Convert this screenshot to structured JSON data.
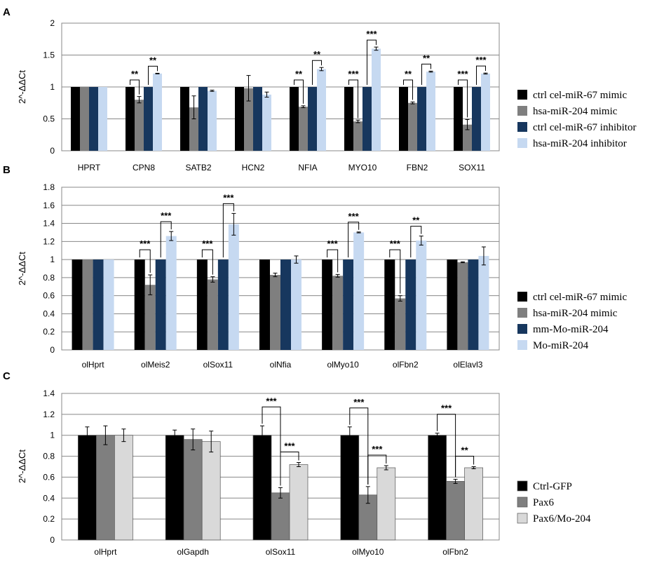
{
  "colors": {
    "black": "#000000",
    "gray": "#7f7f7f",
    "navy": "#17375e",
    "lightblue": "#c6d9f1",
    "lightgray": "#d9d9d9",
    "grid": "#888888"
  },
  "chart_data": [
    {
      "type": "bar",
      "panel_label": "A",
      "ylabel": "2^-ΔΔCt",
      "ylim": [
        0,
        2
      ],
      "yticks": [
        "0",
        "0.5",
        "1",
        "1.5",
        "2"
      ],
      "ytick_values": [
        0,
        0.5,
        1,
        1.5,
        2
      ],
      "grid": true,
      "legend_position": "right",
      "categories": [
        "HPRT",
        "CPN8",
        "SATB2",
        "HCN2",
        "NFIA",
        "MYO10",
        "FBN2",
        "SOX11"
      ],
      "series": [
        {
          "name": "ctrl cel-miR-67 mimic",
          "color": "#000000",
          "values": [
            1,
            1,
            1,
            1,
            1,
            1,
            1,
            1
          ],
          "errors": [
            0,
            0,
            0,
            0,
            0,
            0,
            0,
            0
          ]
        },
        {
          "name": "hsa-miR-204 mimic",
          "color": "#7f7f7f",
          "values": [
            1,
            0.8,
            0.68,
            0.98,
            0.69,
            0.46,
            0.75,
            0.41
          ],
          "errors": [
            0,
            0.05,
            0.18,
            0.2,
            0.015,
            0.02,
            0.015,
            0.08
          ]
        },
        {
          "name": "ctrl cel-miR-67 inhibitor",
          "color": "#17375e",
          "values": [
            1,
            1,
            1,
            1,
            1,
            1,
            1,
            1
          ],
          "errors": [
            0,
            0,
            0,
            0,
            0,
            0,
            0,
            0
          ]
        },
        {
          "name": "hsa-miR-204 inhibitor",
          "color": "#c6d9f1",
          "values": [
            1,
            1.21,
            0.94,
            0.88,
            1.28,
            1.6,
            1.24,
            1.21
          ],
          "errors": [
            0,
            0.005,
            0.01,
            0.04,
            0.025,
            0.025,
            0.008,
            0.008
          ]
        }
      ],
      "significance": [
        {
          "cat": 1,
          "pair": [
            0,
            1
          ],
          "label": "**"
        },
        {
          "cat": 1,
          "pair": [
            2,
            3
          ],
          "label": "**"
        },
        {
          "cat": 4,
          "pair": [
            0,
            1
          ],
          "label": "**"
        },
        {
          "cat": 4,
          "pair": [
            2,
            3
          ],
          "label": "**"
        },
        {
          "cat": 5,
          "pair": [
            0,
            1
          ],
          "label": "***"
        },
        {
          "cat": 5,
          "pair": [
            2,
            3
          ],
          "label": "***"
        },
        {
          "cat": 6,
          "pair": [
            0,
            1
          ],
          "label": "**"
        },
        {
          "cat": 6,
          "pair": [
            2,
            3
          ],
          "label": "**"
        },
        {
          "cat": 7,
          "pair": [
            0,
            1
          ],
          "label": "***"
        },
        {
          "cat": 7,
          "pair": [
            2,
            3
          ],
          "label": "***"
        }
      ]
    },
    {
      "type": "bar",
      "panel_label": "B",
      "ylabel": "2^-ΔΔCt",
      "ylim": [
        0,
        1.8
      ],
      "yticks": [
        "0",
        "0.2",
        "0.4",
        "0.6",
        "0.8",
        "1",
        "1.2",
        "1.4",
        "1.6",
        "1.8"
      ],
      "ytick_values": [
        0,
        0.2,
        0.4,
        0.6,
        0.8,
        1,
        1.2,
        1.4,
        1.6,
        1.8
      ],
      "grid": true,
      "legend_position": "right",
      "categories": [
        "olHprt",
        "olMeis2",
        "olSox11",
        "olNfia",
        "olMyo10",
        "olFbn2",
        "olElavl3"
      ],
      "series": [
        {
          "name": "ctrl cel-miR-67 mimic",
          "color": "#000000",
          "values": [
            1,
            1,
            1,
            1,
            1,
            1,
            1
          ],
          "errors": [
            0,
            0,
            0,
            0,
            0,
            0,
            0
          ]
        },
        {
          "name": "hsa-miR-204 mimic",
          "color": "#7f7f7f",
          "values": [
            1,
            0.72,
            0.78,
            0.83,
            0.82,
            0.57,
            0.97
          ],
          "errors": [
            0,
            0.11,
            0.03,
            0.02,
            0.015,
            0.03,
            0.005
          ]
        },
        {
          "name": "mm-Mo-miR-204",
          "color": "#17375e",
          "values": [
            1,
            1,
            1,
            1,
            1,
            1,
            1
          ],
          "errors": [
            0,
            0,
            0,
            0,
            0,
            0,
            0
          ]
        },
        {
          "name": "Mo-miR-204",
          "color": "#c6d9f1",
          "values": [
            1,
            1.26,
            1.39,
            1.0,
            1.3,
            1.21,
            1.04
          ],
          "errors": [
            0,
            0.05,
            0.12,
            0.04,
            0.005,
            0.05,
            0.1
          ]
        }
      ],
      "significance": [
        {
          "cat": 1,
          "pair": [
            0,
            1
          ],
          "label": "***"
        },
        {
          "cat": 1,
          "pair": [
            2,
            3
          ],
          "label": "***"
        },
        {
          "cat": 2,
          "pair": [
            0,
            1
          ],
          "label": "***"
        },
        {
          "cat": 2,
          "pair": [
            2,
            3
          ],
          "label": "***"
        },
        {
          "cat": 4,
          "pair": [
            0,
            1
          ],
          "label": "***"
        },
        {
          "cat": 4,
          "pair": [
            2,
            3
          ],
          "label": "***"
        },
        {
          "cat": 5,
          "pair": [
            0,
            1
          ],
          "label": "***"
        },
        {
          "cat": 5,
          "pair": [
            2,
            3
          ],
          "label": "**"
        }
      ]
    },
    {
      "type": "bar",
      "panel_label": "C",
      "ylabel": "2^-ΔΔCt",
      "ylim": [
        0,
        1.4
      ],
      "yticks": [
        "0",
        "0.2",
        "0.4",
        "0.6",
        "0.8",
        "1",
        "1.2",
        "1.4"
      ],
      "ytick_values": [
        0,
        0.2,
        0.4,
        0.6,
        0.8,
        1,
        1.2,
        1.4
      ],
      "grid": true,
      "legend_position": "right",
      "categories": [
        "olHprt",
        "olGapdh",
        "olSox11",
        "olMyo10",
        "olFbn2"
      ],
      "series": [
        {
          "name": "Ctrl-GFP",
          "color": "#000000",
          "values": [
            1,
            1,
            1,
            1,
            1
          ],
          "errors": [
            0.08,
            0.05,
            0.09,
            0.08,
            0.02
          ]
        },
        {
          "name": "Pax6",
          "color": "#7f7f7f",
          "values": [
            1,
            0.96,
            0.45,
            0.43,
            0.56
          ],
          "errors": [
            0.09,
            0.1,
            0.05,
            0.08,
            0.02
          ]
        },
        {
          "name": "Pax6/Mo-204",
          "color": "#d9d9d9",
          "values": [
            1,
            0.94,
            0.72,
            0.69,
            0.69
          ],
          "errors": [
            0.06,
            0.1,
            0.02,
            0.02,
            0.01
          ]
        }
      ],
      "significance": [
        {
          "cat": 2,
          "pair": [
            0,
            1
          ],
          "label": "***"
        },
        {
          "cat": 2,
          "pair": [
            1,
            2
          ],
          "label": "***"
        },
        {
          "cat": 3,
          "pair": [
            0,
            1
          ],
          "label": "***"
        },
        {
          "cat": 3,
          "pair": [
            1,
            2
          ],
          "label": "***"
        },
        {
          "cat": 4,
          "pair": [
            0,
            1
          ],
          "label": "***"
        },
        {
          "cat": 4,
          "pair": [
            1,
            2
          ],
          "label": "**"
        }
      ]
    }
  ]
}
